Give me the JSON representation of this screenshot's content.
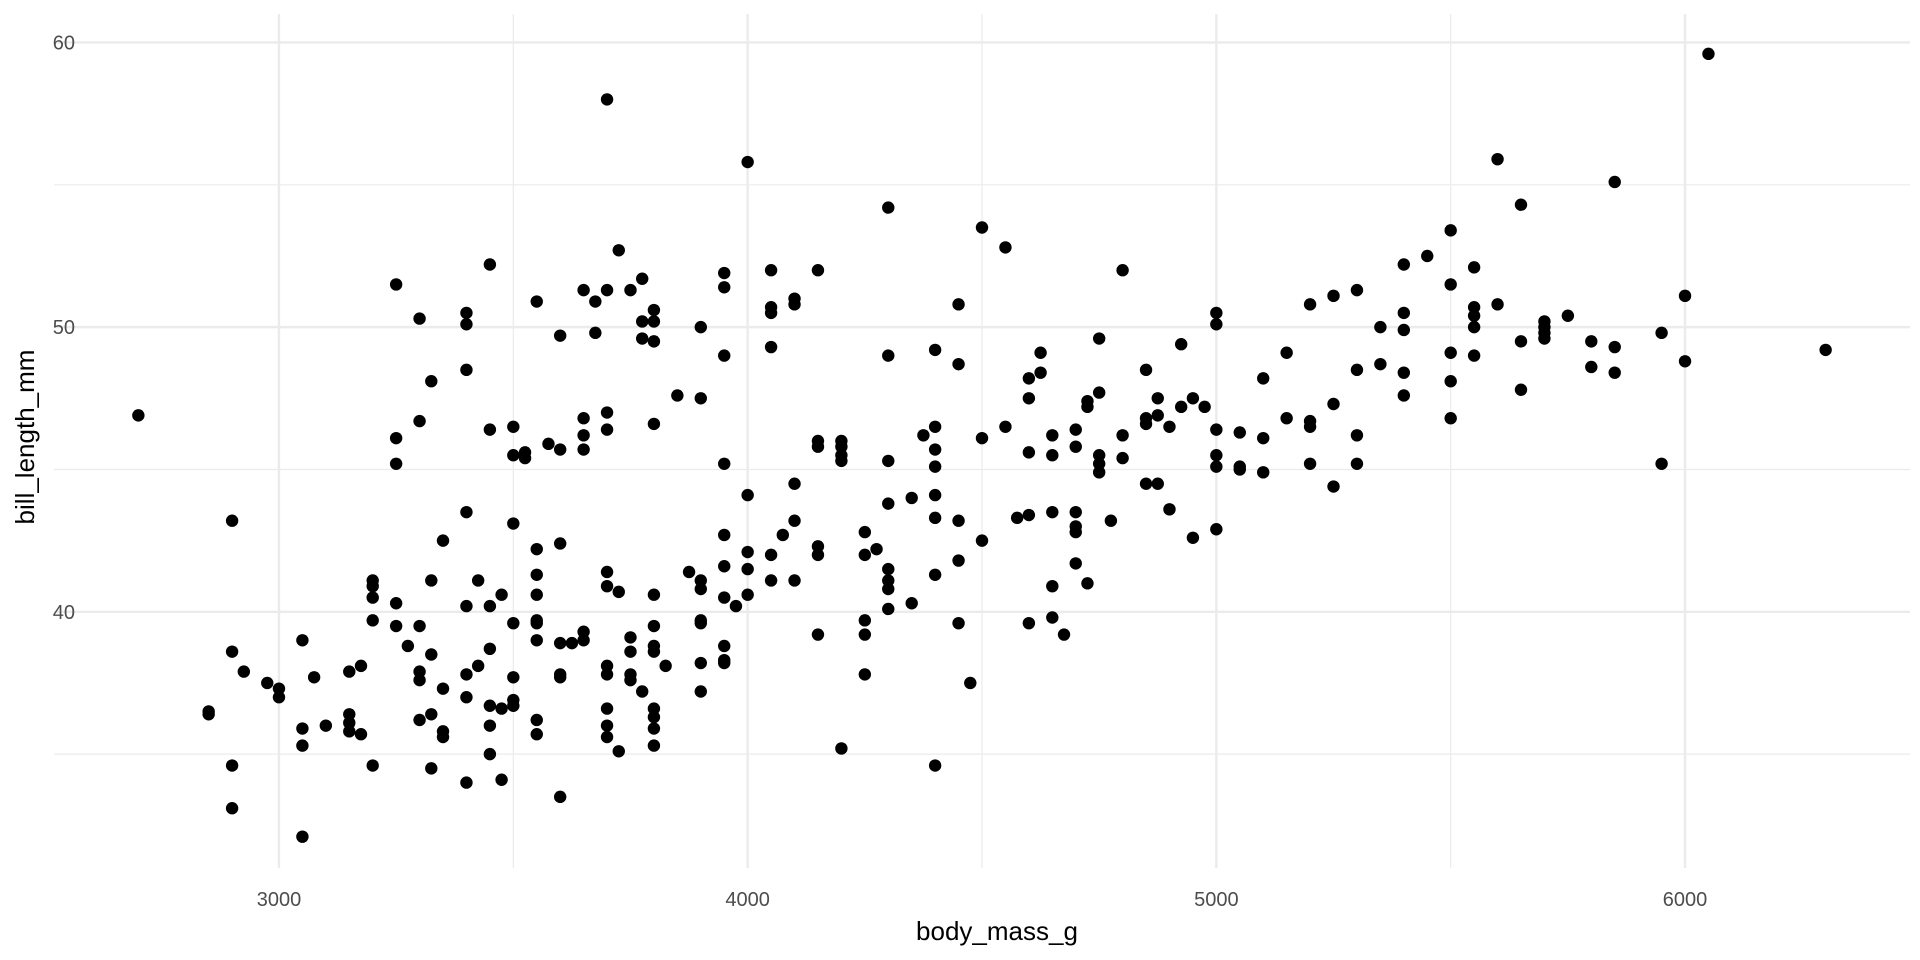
{
  "chart_data": {
    "type": "scatter",
    "xlabel": "body_mass_g",
    "ylabel": "bill_length_mm",
    "xlim": [
      2520,
      6480
    ],
    "ylim": [
      31.0,
      61.0
    ],
    "x_ticks": [
      3000,
      4000,
      5000,
      6000
    ],
    "x_minor_ticks": [
      2500,
      3500,
      4500,
      5500,
      6500
    ],
    "y_ticks": [
      40,
      50,
      60
    ],
    "y_minor_ticks": [
      35,
      45,
      55
    ],
    "grid": true,
    "legend": "none",
    "point_color": "#000000",
    "grid_color": "#ebebeb",
    "points": [
      [
        2700,
        46.9
      ],
      [
        2850,
        36.5
      ],
      [
        2850,
        36.4
      ],
      [
        2900,
        43.2
      ],
      [
        2900,
        38.6
      ],
      [
        2900,
        34.6
      ],
      [
        2900,
        33.1
      ],
      [
        2925,
        37.9
      ],
      [
        2975,
        37.5
      ],
      [
        3000,
        37.3
      ],
      [
        3000,
        37.0
      ],
      [
        3050,
        39.0
      ],
      [
        3050,
        35.9
      ],
      [
        3050,
        35.3
      ],
      [
        3050,
        32.1
      ],
      [
        3075,
        37.7
      ],
      [
        3100,
        36.0
      ],
      [
        3150,
        37.9
      ],
      [
        3150,
        36.4
      ],
      [
        3150,
        36.1
      ],
      [
        3150,
        35.8
      ],
      [
        3175,
        38.1
      ],
      [
        3175,
        35.7
      ],
      [
        3200,
        41.1
      ],
      [
        3200,
        40.9
      ],
      [
        3200,
        40.5
      ],
      [
        3200,
        39.7
      ],
      [
        3200,
        34.6
      ],
      [
        3250,
        51.5
      ],
      [
        3250,
        46.1
      ],
      [
        3250,
        45.2
      ],
      [
        3250,
        40.3
      ],
      [
        3250,
        39.5
      ],
      [
        3275,
        38.8
      ],
      [
        3300,
        50.3
      ],
      [
        3300,
        46.7
      ],
      [
        3300,
        39.5
      ],
      [
        3300,
        37.9
      ],
      [
        3300,
        37.6
      ],
      [
        3300,
        36.2
      ],
      [
        3325,
        48.1
      ],
      [
        3325,
        41.1
      ],
      [
        3325,
        38.5
      ],
      [
        3325,
        36.4
      ],
      [
        3325,
        34.5
      ],
      [
        3350,
        42.5
      ],
      [
        3350,
        37.3
      ],
      [
        3350,
        35.8
      ],
      [
        3350,
        35.6
      ],
      [
        3400,
        50.5
      ],
      [
        3400,
        50.1
      ],
      [
        3400,
        48.5
      ],
      [
        3400,
        43.5
      ],
      [
        3400,
        40.2
      ],
      [
        3400,
        37.8
      ],
      [
        3400,
        37.0
      ],
      [
        3400,
        34.0
      ],
      [
        3425,
        41.1
      ],
      [
        3425,
        38.1
      ],
      [
        3450,
        52.2
      ],
      [
        3450,
        46.4
      ],
      [
        3450,
        40.2
      ],
      [
        3450,
        38.7
      ],
      [
        3450,
        36.7
      ],
      [
        3450,
        36.0
      ],
      [
        3450,
        35.0
      ],
      [
        3475,
        40.6
      ],
      [
        3475,
        36.6
      ],
      [
        3475,
        34.1
      ],
      [
        3500,
        46.5
      ],
      [
        3500,
        45.5
      ],
      [
        3500,
        43.1
      ],
      [
        3500,
        39.6
      ],
      [
        3500,
        37.7
      ],
      [
        3500,
        36.9
      ],
      [
        3500,
        36.7
      ],
      [
        3525,
        45.6
      ],
      [
        3525,
        45.4
      ],
      [
        3550,
        50.9
      ],
      [
        3550,
        42.2
      ],
      [
        3550,
        41.3
      ],
      [
        3550,
        40.6
      ],
      [
        3550,
        39.7
      ],
      [
        3550,
        39.6
      ],
      [
        3550,
        39.0
      ],
      [
        3550,
        36.2
      ],
      [
        3550,
        35.7
      ],
      [
        3575,
        45.9
      ],
      [
        3600,
        49.7
      ],
      [
        3600,
        45.7
      ],
      [
        3600,
        42.4
      ],
      [
        3600,
        38.9
      ],
      [
        3600,
        37.8
      ],
      [
        3600,
        37.7
      ],
      [
        3600,
        33.5
      ],
      [
        3625,
        38.9
      ],
      [
        3650,
        51.3
      ],
      [
        3650,
        46.8
      ],
      [
        3650,
        46.2
      ],
      [
        3650,
        45.7
      ],
      [
        3650,
        39.3
      ],
      [
        3650,
        39.0
      ],
      [
        3675,
        50.9
      ],
      [
        3675,
        49.8
      ],
      [
        3700,
        58.0
      ],
      [
        3700,
        51.3
      ],
      [
        3700,
        47.0
      ],
      [
        3700,
        46.4
      ],
      [
        3700,
        41.4
      ],
      [
        3700,
        40.9
      ],
      [
        3700,
        38.1
      ],
      [
        3700,
        37.8
      ],
      [
        3700,
        36.6
      ],
      [
        3700,
        36.0
      ],
      [
        3700,
        35.6
      ],
      [
        3725,
        52.7
      ],
      [
        3725,
        40.7
      ],
      [
        3725,
        35.1
      ],
      [
        3750,
        51.3
      ],
      [
        3750,
        39.1
      ],
      [
        3750,
        38.6
      ],
      [
        3750,
        37.8
      ],
      [
        3750,
        37.6
      ],
      [
        3775,
        51.7
      ],
      [
        3775,
        50.2
      ],
      [
        3775,
        49.6
      ],
      [
        3775,
        37.2
      ],
      [
        3800,
        50.6
      ],
      [
        3800,
        50.2
      ],
      [
        3800,
        49.5
      ],
      [
        3800,
        46.6
      ],
      [
        3800,
        40.6
      ],
      [
        3800,
        39.5
      ],
      [
        3800,
        38.8
      ],
      [
        3800,
        38.6
      ],
      [
        3800,
        36.6
      ],
      [
        3800,
        36.3
      ],
      [
        3800,
        35.9
      ],
      [
        3800,
        35.3
      ],
      [
        3825,
        38.1
      ],
      [
        3850,
        47.6
      ],
      [
        3875,
        41.4
      ],
      [
        3900,
        50.0
      ],
      [
        3900,
        47.5
      ],
      [
        3900,
        41.1
      ],
      [
        3900,
        40.8
      ],
      [
        3900,
        39.7
      ],
      [
        3900,
        39.6
      ],
      [
        3900,
        38.2
      ],
      [
        3900,
        37.2
      ],
      [
        3950,
        51.9
      ],
      [
        3950,
        51.4
      ],
      [
        3950,
        49.0
      ],
      [
        3950,
        45.2
      ],
      [
        3950,
        42.7
      ],
      [
        3950,
        41.6
      ],
      [
        3950,
        40.5
      ],
      [
        3950,
        38.8
      ],
      [
        3950,
        38.3
      ],
      [
        3950,
        38.2
      ],
      [
        3975,
        40.2
      ],
      [
        4000,
        55.8
      ],
      [
        4000,
        44.1
      ],
      [
        4000,
        42.1
      ],
      [
        4000,
        41.5
      ],
      [
        4000,
        40.6
      ],
      [
        4050,
        52.0
      ],
      [
        4050,
        50.7
      ],
      [
        4050,
        50.5
      ],
      [
        4050,
        49.3
      ],
      [
        4050,
        42.0
      ],
      [
        4050,
        41.1
      ],
      [
        4075,
        42.7
      ],
      [
        4100,
        51.0
      ],
      [
        4100,
        50.8
      ],
      [
        4100,
        44.5
      ],
      [
        4100,
        43.2
      ],
      [
        4100,
        41.1
      ],
      [
        4150,
        52.0
      ],
      [
        4150,
        46.0
      ],
      [
        4150,
        45.8
      ],
      [
        4150,
        42.3
      ],
      [
        4150,
        42.0
      ],
      [
        4150,
        39.2
      ],
      [
        4200,
        46.0
      ],
      [
        4200,
        45.8
      ],
      [
        4200,
        45.5
      ],
      [
        4200,
        45.3
      ],
      [
        4200,
        35.2
      ],
      [
        4250,
        42.8
      ],
      [
        4250,
        42.0
      ],
      [
        4250,
        39.7
      ],
      [
        4250,
        39.2
      ],
      [
        4250,
        37.8
      ],
      [
        4275,
        42.2
      ],
      [
        4300,
        54.2
      ],
      [
        4300,
        49.0
      ],
      [
        4300,
        45.3
      ],
      [
        4300,
        43.8
      ],
      [
        4300,
        41.5
      ],
      [
        4300,
        41.1
      ],
      [
        4300,
        40.8
      ],
      [
        4300,
        40.1
      ],
      [
        4350,
        44.0
      ],
      [
        4350,
        40.3
      ],
      [
        4375,
        46.2
      ],
      [
        4400,
        49.2
      ],
      [
        4400,
        46.5
      ],
      [
        4400,
        45.7
      ],
      [
        4400,
        45.1
      ],
      [
        4400,
        44.1
      ],
      [
        4400,
        43.3
      ],
      [
        4400,
        41.3
      ],
      [
        4400,
        34.6
      ],
      [
        4450,
        50.8
      ],
      [
        4450,
        48.7
      ],
      [
        4450,
        43.2
      ],
      [
        4450,
        41.8
      ],
      [
        4450,
        39.6
      ],
      [
        4475,
        37.5
      ],
      [
        4500,
        53.5
      ],
      [
        4500,
        46.1
      ],
      [
        4500,
        42.5
      ],
      [
        4550,
        52.8
      ],
      [
        4550,
        46.5
      ],
      [
        4575,
        43.3
      ],
      [
        4600,
        48.2
      ],
      [
        4600,
        47.5
      ],
      [
        4600,
        45.6
      ],
      [
        4600,
        43.4
      ],
      [
        4600,
        39.6
      ],
      [
        4625,
        49.1
      ],
      [
        4625,
        48.4
      ],
      [
        4650,
        46.2
      ],
      [
        4650,
        45.5
      ],
      [
        4650,
        43.5
      ],
      [
        4650,
        40.9
      ],
      [
        4650,
        39.8
      ],
      [
        4675,
        39.2
      ],
      [
        4700,
        46.4
      ],
      [
        4700,
        45.8
      ],
      [
        4700,
        43.5
      ],
      [
        4700,
        43.0
      ],
      [
        4700,
        42.8
      ],
      [
        4700,
        41.7
      ],
      [
        4725,
        47.4
      ],
      [
        4725,
        47.2
      ],
      [
        4725,
        41.0
      ],
      [
        4750,
        49.6
      ],
      [
        4750,
        47.7
      ],
      [
        4750,
        45.5
      ],
      [
        4750,
        45.2
      ],
      [
        4750,
        44.9
      ],
      [
        4775,
        43.2
      ],
      [
        4800,
        52.0
      ],
      [
        4800,
        46.2
      ],
      [
        4800,
        45.4
      ],
      [
        4850,
        48.5
      ],
      [
        4850,
        46.8
      ],
      [
        4850,
        46.6
      ],
      [
        4850,
        44.5
      ],
      [
        4875,
        47.5
      ],
      [
        4875,
        46.9
      ],
      [
        4875,
        44.5
      ],
      [
        4900,
        46.5
      ],
      [
        4900,
        43.6
      ],
      [
        4925,
        49.4
      ],
      [
        4925,
        47.2
      ],
      [
        4950,
        47.5
      ],
      [
        4950,
        42.6
      ],
      [
        4975,
        47.2
      ],
      [
        5000,
        50.5
      ],
      [
        5000,
        50.1
      ],
      [
        5000,
        46.4
      ],
      [
        5000,
        45.5
      ],
      [
        5000,
        45.1
      ],
      [
        5000,
        42.9
      ],
      [
        5050,
        46.3
      ],
      [
        5050,
        45.1
      ],
      [
        5050,
        45.0
      ],
      [
        5100,
        48.2
      ],
      [
        5100,
        46.1
      ],
      [
        5100,
        44.9
      ],
      [
        5150,
        49.1
      ],
      [
        5150,
        46.8
      ],
      [
        5200,
        50.8
      ],
      [
        5200,
        46.7
      ],
      [
        5200,
        46.5
      ],
      [
        5200,
        45.2
      ],
      [
        5250,
        51.1
      ],
      [
        5250,
        47.3
      ],
      [
        5250,
        44.4
      ],
      [
        5300,
        51.3
      ],
      [
        5300,
        48.5
      ],
      [
        5300,
        46.2
      ],
      [
        5300,
        45.2
      ],
      [
        5350,
        50.0
      ],
      [
        5350,
        48.7
      ],
      [
        5400,
        52.2
      ],
      [
        5400,
        50.5
      ],
      [
        5400,
        49.9
      ],
      [
        5400,
        48.4
      ],
      [
        5400,
        47.6
      ],
      [
        5450,
        52.5
      ],
      [
        5500,
        53.4
      ],
      [
        5500,
        51.5
      ],
      [
        5500,
        49.1
      ],
      [
        5500,
        48.1
      ],
      [
        5500,
        46.8
      ],
      [
        5550,
        52.1
      ],
      [
        5550,
        50.7
      ],
      [
        5550,
        50.4
      ],
      [
        5550,
        50.0
      ],
      [
        5550,
        49.0
      ],
      [
        5600,
        55.9
      ],
      [
        5600,
        50.8
      ],
      [
        5650,
        54.3
      ],
      [
        5650,
        49.5
      ],
      [
        5650,
        47.8
      ],
      [
        5700,
        50.2
      ],
      [
        5700,
        50.0
      ],
      [
        5700,
        49.8
      ],
      [
        5700,
        49.6
      ],
      [
        5750,
        50.4
      ],
      [
        5800,
        49.5
      ],
      [
        5800,
        48.6
      ],
      [
        5850,
        55.1
      ],
      [
        5850,
        49.3
      ],
      [
        5850,
        48.4
      ],
      [
        5950,
        49.8
      ],
      [
        5950,
        45.2
      ],
      [
        6000,
        51.1
      ],
      [
        6000,
        48.8
      ],
      [
        6050,
        59.6
      ],
      [
        6300,
        49.2
      ]
    ]
  }
}
